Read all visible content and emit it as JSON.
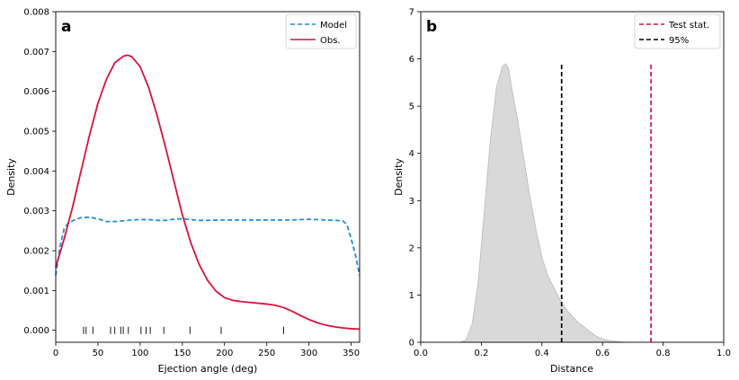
{
  "chart_data": [
    {
      "panel_label": "a",
      "type": "line",
      "xlabel": "Ejection angle (deg)",
      "ylabel": "Density",
      "xlim": [
        0,
        360
      ],
      "ylim": [
        -0.0003,
        0.008
      ],
      "x_ticks": [
        0,
        50,
        100,
        150,
        200,
        250,
        300,
        350
      ],
      "x_tick_labels": [
        "0",
        "50",
        "100",
        "150",
        "200",
        "250",
        "300",
        "350"
      ],
      "y_ticks": [
        0,
        0.001,
        0.002,
        0.003,
        0.004,
        0.005,
        0.006,
        0.007,
        0.008
      ],
      "y_tick_labels": [
        "0.000",
        "0.001",
        "0.002",
        "0.003",
        "0.004",
        "0.005",
        "0.006",
        "0.007",
        "0.008"
      ],
      "legend_position": "top-right",
      "series": [
        {
          "name": "Model",
          "color": "#1f8ee0",
          "style": "dashed",
          "x": [
            0,
            5,
            10,
            15,
            20,
            30,
            40,
            50,
            60,
            70,
            80,
            90,
            100,
            110,
            120,
            130,
            140,
            150,
            160,
            170,
            180,
            200,
            220,
            250,
            280,
            300,
            320,
            340,
            345,
            350,
            355,
            360
          ],
          "y": [
            0.00138,
            0.0021,
            0.00255,
            0.0027,
            0.00275,
            0.00283,
            0.00284,
            0.0028,
            0.00273,
            0.00273,
            0.00275,
            0.00277,
            0.00278,
            0.00278,
            0.00276,
            0.00276,
            0.00279,
            0.0028,
            0.00278,
            0.00276,
            0.00276,
            0.00277,
            0.00277,
            0.00277,
            0.00277,
            0.00279,
            0.00277,
            0.00275,
            0.00265,
            0.0023,
            0.0019,
            0.00138
          ]
        },
        {
          "name": "Obs.",
          "color": "#d6133f",
          "style": "solid",
          "x": [
            0,
            10,
            20,
            30,
            40,
            50,
            60,
            70,
            80,
            85,
            90,
            100,
            110,
            120,
            130,
            140,
            150,
            160,
            170,
            180,
            190,
            200,
            210,
            220,
            230,
            240,
            250,
            260,
            270,
            280,
            290,
            300,
            310,
            320,
            330,
            340,
            350,
            360
          ],
          "y": [
            0.00158,
            0.0023,
            0.0031,
            0.004,
            0.0049,
            0.0057,
            0.0063,
            0.00672,
            0.00688,
            0.00691,
            0.00687,
            0.00662,
            0.0061,
            0.0054,
            0.0046,
            0.00375,
            0.0029,
            0.0022,
            0.00165,
            0.00125,
            0.00098,
            0.00082,
            0.00075,
            0.00072,
            0.0007,
            0.00068,
            0.00066,
            0.00063,
            0.00057,
            0.00048,
            0.00037,
            0.00027,
            0.00019,
            0.00013,
            9e-05,
            6e-05,
            4e-05,
            3e-05
          ]
        }
      ],
      "rug": [
        33,
        36,
        44,
        65,
        70,
        77,
        80,
        86,
        101,
        107,
        112,
        128,
        159,
        196,
        270
      ]
    },
    {
      "panel_label": "b",
      "type": "area",
      "xlabel": "Distance",
      "ylabel": "Density",
      "xlim": [
        0.0,
        1.0
      ],
      "ylim": [
        0,
        7
      ],
      "x_ticks": [
        0.0,
        0.2,
        0.4,
        0.6,
        0.8,
        1.0
      ],
      "x_tick_labels": [
        "0.0",
        "0.2",
        "0.4",
        "0.6",
        "0.8",
        "1.0"
      ],
      "y_ticks": [
        0,
        1,
        2,
        3,
        4,
        5,
        6,
        7
      ],
      "y_tick_labels": [
        "0",
        "1",
        "2",
        "3",
        "4",
        "5",
        "6",
        "7"
      ],
      "legend_position": "top-right",
      "distribution": {
        "color": "#bbbbbb",
        "x": [
          0.13,
          0.15,
          0.17,
          0.19,
          0.21,
          0.23,
          0.25,
          0.27,
          0.28,
          0.29,
          0.3,
          0.32,
          0.34,
          0.36,
          0.38,
          0.4,
          0.42,
          0.44,
          0.46,
          0.48,
          0.5,
          0.52,
          0.54,
          0.56,
          0.58,
          0.6,
          0.62,
          0.64,
          0.66,
          0.68
        ],
        "y": [
          0.0,
          0.05,
          0.4,
          1.3,
          2.8,
          4.3,
          5.4,
          5.85,
          5.9,
          5.8,
          5.4,
          4.7,
          3.9,
          3.1,
          2.4,
          1.8,
          1.4,
          1.15,
          0.9,
          0.7,
          0.55,
          0.42,
          0.32,
          0.22,
          0.13,
          0.07,
          0.04,
          0.02,
          0.01,
          0.0
        ]
      },
      "vlines": [
        {
          "name": "Test stat.",
          "x": 0.76,
          "y_max": 5.9,
          "color": "#d6133f",
          "style": "dashed"
        },
        {
          "name": "95%",
          "x": 0.465,
          "y_max": 5.9,
          "color": "#000000",
          "style": "dashed"
        }
      ]
    }
  ]
}
